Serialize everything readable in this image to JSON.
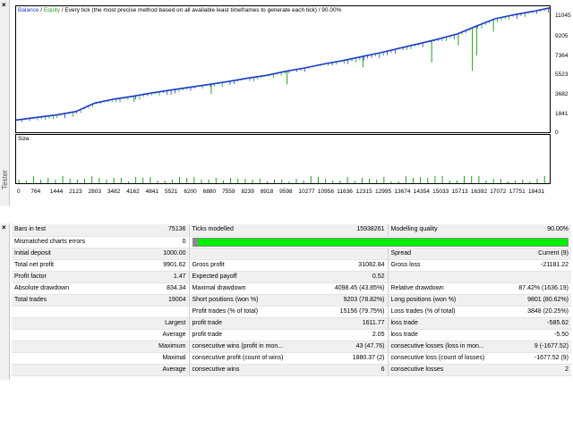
{
  "chart": {
    "legend": {
      "balance": "Balance",
      "sep1": " / ",
      "equity": "Equity",
      "sep2": " / ",
      "description": "Every tick (the most precise method based on all available least timeframes to generate each tick)",
      "sep3": " / ",
      "quality": "90.00%"
    },
    "size_label": "Size",
    "y_ticks": [
      "11045",
      "9205",
      "7364",
      "5523",
      "3682",
      "1841",
      "0"
    ],
    "x_ticks": [
      "0",
      "764",
      "1444",
      "2123",
      "2803",
      "3482",
      "4162",
      "4841",
      "5521",
      "6200",
      "6880",
      "7559",
      "8239",
      "8918",
      "9598",
      "10277",
      "10956",
      "11636",
      "12315",
      "12995",
      "13674",
      "14354",
      "15033",
      "15713",
      "16392",
      "17072",
      "17751",
      "18431"
    ],
    "left_label": "Tester",
    "colors": {
      "balance": "#1a3cc8",
      "equity": "#1fa01f",
      "size_bars": "#1fa01f"
    }
  },
  "chart_data": {
    "type": "line",
    "title": "",
    "xlabel": "",
    "ylabel": "",
    "ylim": [
      0,
      11045
    ],
    "xlim": [
      0,
      19004
    ],
    "series": [
      {
        "name": "Balance",
        "x": [
          0,
          764,
          1444,
          2123,
          2803,
          3482,
          4162,
          4841,
          5521,
          6200,
          6880,
          7559,
          8239,
          8918,
          9598,
          10277,
          10956,
          11636,
          12315,
          12995,
          13674,
          14354,
          15033,
          15713,
          16392,
          17072,
          17751,
          18431,
          19004
        ],
        "values": [
          1000,
          1250,
          1450,
          1750,
          2500,
          2850,
          3100,
          3400,
          3650,
          3900,
          4150,
          4400,
          4700,
          4950,
          5300,
          5600,
          5950,
          6250,
          6600,
          6950,
          7350,
          7750,
          8150,
          8600,
          9300,
          9950,
          10300,
          10600,
          10901
        ]
      },
      {
        "name": "Equity",
        "x": [
          4200,
          6950,
          9650,
          12350,
          14800,
          15750,
          16250,
          16400,
          17000
        ],
        "values": [
          2600,
          3300,
          4150,
          5650,
          6100,
          7600,
          5350,
          6700,
          8800
        ]
      }
    ],
    "legend": "top-left",
    "grid": false
  },
  "report": {
    "rows": [
      [
        "Bars in test",
        "75136",
        "Ticks modelled",
        "15938261",
        "Modelling quality",
        "90.00%"
      ],
      [
        "Mismatched charts errors",
        "0",
        "",
        "",
        "",
        ""
      ],
      [
        "Initial deposit",
        "1000.00",
        "",
        "",
        "Spread",
        "Current (9)"
      ],
      [
        "Total net profit",
        "9901.62",
        "Gross profit",
        "31082.84",
        "Gross loss",
        "-21181.22"
      ],
      [
        "Profit factor",
        "1.47",
        "Expected payoff",
        "0.52",
        "",
        ""
      ],
      [
        "Absolute drawdown",
        "834.34",
        "Maximal drawdown",
        "4098.45 (43.85%)",
        "Relative drawdown",
        "87.42% (1636.19)"
      ],
      [
        "Total trades",
        "19004",
        "Short positions (won %)",
        "9203 (78.82%)",
        "Long positions (won %)",
        "9801 (80.62%)"
      ],
      [
        "",
        "",
        "Profit trades (% of total)",
        "15156 (79.75%)",
        "Loss trades (% of total)",
        "3848 (20.25%)"
      ],
      [
        "",
        "Largest",
        "profit trade",
        "1611.77",
        "loss trade",
        "-585.62"
      ],
      [
        "",
        "Average",
        "profit trade",
        "2.05",
        "loss trade",
        "-5.50"
      ],
      [
        "",
        "Maximum",
        "consecutive wins (profit in mon...",
        "43 (47.76)",
        "consecutive losses (loss in mon...",
        "9 (-1677.52)"
      ],
      [
        "",
        "Maximal",
        "consecutive profit (count of wins)",
        "1880.37 (2)",
        "consecutive loss (count of losses)",
        "-1677.52 (9)"
      ],
      [
        "",
        "Average",
        "consecutive wins",
        "6",
        "consecutive losses",
        "2"
      ]
    ],
    "modelling_quality": 0.9,
    "colors": {
      "quality_bar": "#00ee00"
    }
  }
}
